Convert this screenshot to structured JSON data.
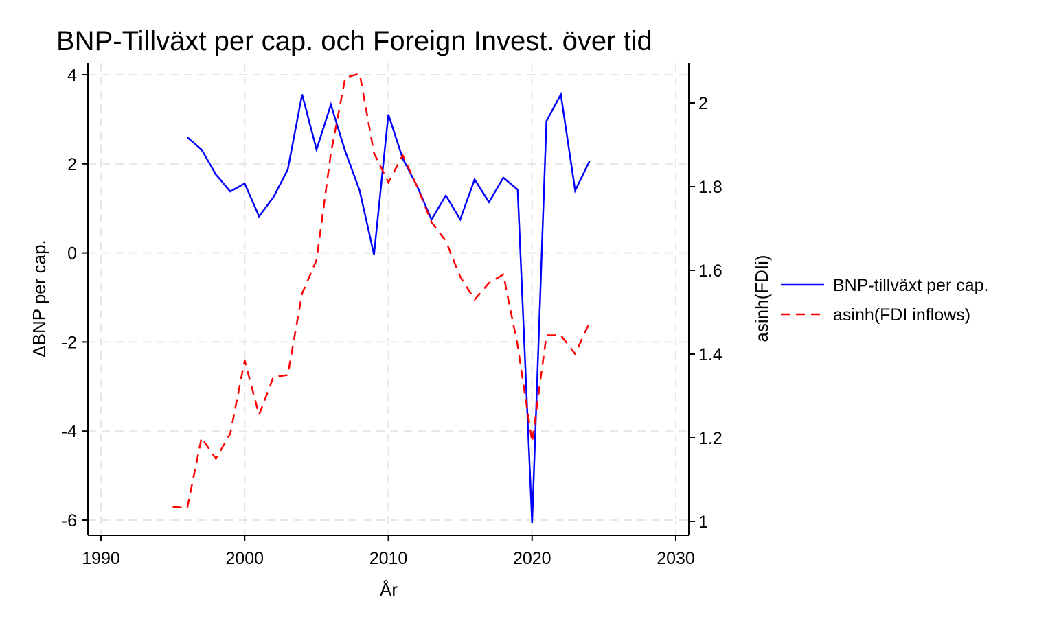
{
  "chart_data": {
    "type": "line",
    "title": "BNP-Tillväxt per cap. och Foreign Invest. över tid",
    "xlabel": "År",
    "ylabel_left": "ΔBNP  per cap.",
    "ylabel_right": "asinh(FDIi)",
    "xlim": [
      1990,
      2030
    ],
    "ylim_left": [
      -6,
      4
    ],
    "ylim_right": [
      1.0,
      2.0
    ],
    "x_ticks": [
      "1990",
      "2000",
      "2010",
      "2020",
      "2030"
    ],
    "y_ticks_left": [
      "4",
      "2",
      "0",
      "-2",
      "-4",
      "-6"
    ],
    "y_ticks_right": [
      "2",
      "1.8",
      "1.6",
      "1.4",
      "1.2",
      "1"
    ],
    "grid": true,
    "legend_position": "right",
    "colors": {
      "gdp": "#0000ff",
      "fdi": "#ff0000",
      "grid": "#e6e6e6"
    },
    "series": [
      {
        "name": "BNP-tillväxt per cap.",
        "axis": "left",
        "style": "solid",
        "x": [
          1996,
          1997,
          1998,
          1999,
          2000,
          2001,
          2002,
          2003,
          2004,
          2005,
          2006,
          2007,
          2008,
          2009,
          2010,
          2011,
          2012,
          2013,
          2014,
          2015,
          2016,
          2017,
          2018,
          2019,
          2020,
          2021,
          2022,
          2023,
          2024
        ],
        "values": [
          2.6,
          2.32,
          1.76,
          1.38,
          1.56,
          0.82,
          1.25,
          1.87,
          3.56,
          2.32,
          3.33,
          2.28,
          1.4,
          -0.04,
          3.11,
          2.12,
          1.5,
          0.75,
          1.29,
          0.75,
          1.65,
          1.14,
          1.69,
          1.42,
          -6.06,
          2.96,
          3.56,
          1.4,
          2.06
        ]
      },
      {
        "name": "asinh(FDI inflows)",
        "axis": "right",
        "style": "dashed",
        "x": [
          1995,
          1996,
          1997,
          1998,
          1999,
          2000,
          2001,
          2002,
          2003,
          2004,
          2005,
          2006,
          2007,
          2008,
          2009,
          2010,
          2011,
          2012,
          2013,
          2014,
          2015,
          2016,
          2017,
          2018,
          2019,
          2020,
          2021,
          2022,
          2023,
          2024
        ],
        "values": [
          1.035,
          1.032,
          1.2,
          1.15,
          1.21,
          1.385,
          1.255,
          1.345,
          1.35,
          1.545,
          1.625,
          1.88,
          2.06,
          2.07,
          1.88,
          1.81,
          1.875,
          1.8,
          1.715,
          1.67,
          1.585,
          1.53,
          1.57,
          1.59,
          1.42,
          1.19,
          1.445,
          1.445,
          1.4,
          1.475
        ]
      }
    ]
  }
}
